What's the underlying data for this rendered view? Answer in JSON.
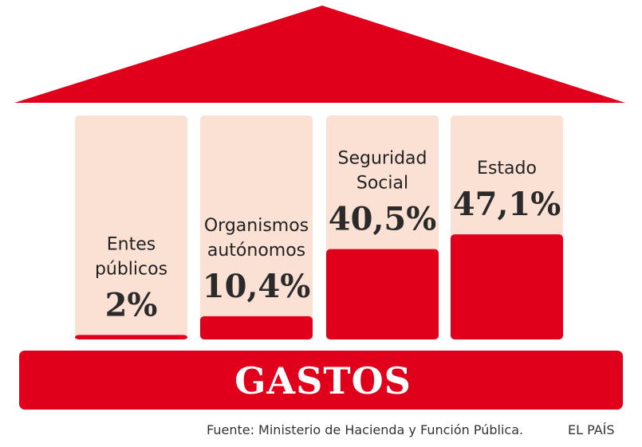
{
  "chart_data": {
    "type": "bar",
    "title": "GASTOS",
    "categories": [
      [
        "Entes",
        "públicos"
      ],
      [
        "Organismos",
        "autónomos"
      ],
      [
        "Seguridad",
        "Social"
      ],
      [
        "Estado"
      ]
    ],
    "value_labels": [
      "2%",
      "10,4%",
      "40,5%",
      "47,1%"
    ],
    "values": [
      2,
      10.4,
      40.5,
      47.1
    ],
    "ylim": [
      0,
      100
    ],
    "units": "%"
  },
  "footer": {
    "source": "Fuente: Ministerio de Hacienda y Función Pública.",
    "brand": "EL PAÍS"
  },
  "colors": {
    "accent": "#e0001b",
    "column_background": "#fbe0d4",
    "text": "#222222"
  }
}
